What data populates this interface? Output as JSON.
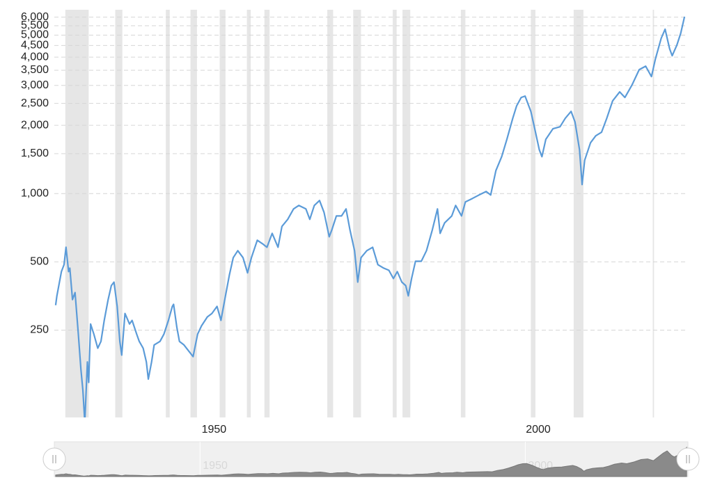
{
  "chart_data": {
    "type": "line",
    "log_scale": true,
    "grid": true,
    "color": "#5b9bd8",
    "recession_color": "#e6e6e6",
    "xlim": [
      1927.6,
      2025
    ],
    "xticks": [
      1950,
      2000
    ],
    "ylim": [
      103,
      6470
    ],
    "yticks": [
      250,
      500,
      {
        "value": 1000,
        "label": "1,000"
      },
      {
        "value": 1500,
        "label": "1,500"
      },
      {
        "value": 2000,
        "label": "2,000"
      },
      {
        "value": 2500,
        "label": "2,500"
      },
      {
        "value": 3000,
        "label": "3,000"
      },
      {
        "value": 3500,
        "label": "3,500"
      },
      {
        "value": 4000,
        "label": "4,000"
      },
      {
        "value": 4500,
        "label": "4,500"
      },
      {
        "value": 5000,
        "label": "5,000"
      },
      {
        "value": 5500,
        "label": "5,500"
      },
      {
        "value": 6000,
        "label": "6,000"
      }
    ],
    "recessions": [
      [
        1929.3,
        1932.9
      ],
      [
        1937.0,
        1938.1
      ],
      [
        1944.8,
        1945.4
      ],
      [
        1948.6,
        1949.6
      ],
      [
        1953.1,
        1954.0
      ],
      [
        1957.3,
        1957.9
      ],
      [
        1960.0,
        1960.8
      ],
      [
        1969.7,
        1970.6
      ],
      [
        1973.7,
        1974.9
      ],
      [
        1979.8,
        1980.4
      ],
      [
        1981.3,
        1982.5
      ],
      [
        1990.3,
        1991.0
      ],
      [
        2001.1,
        2001.8
      ],
      [
        2007.7,
        2009.2
      ],
      [
        2019.9,
        2020.1
      ]
    ],
    "x": [
      1927.8,
      1928.0,
      1928.7,
      1929.1,
      1929.4,
      1929.8,
      1930.0,
      1930.4,
      1930.8,
      1931.3,
      1931.7,
      1932.0,
      1932.3,
      1932.7,
      1932.9,
      1933.2,
      1933.7,
      1934.3,
      1934.8,
      1935.3,
      1935.9,
      1936.4,
      1936.8,
      1937.3,
      1937.7,
      1938.0,
      1938.5,
      1939.2,
      1939.6,
      1940.3,
      1940.7,
      1941.3,
      1941.8,
      1942.1,
      1942.6,
      1943.0,
      1943.9,
      1944.5,
      1945.2,
      1945.8,
      1946.0,
      1946.5,
      1946.9,
      1947.6,
      1948.4,
      1949.0,
      1949.7,
      1950.3,
      1951.2,
      1951.9,
      1952.7,
      1953.3,
      1954.0,
      1954.6,
      1955.2,
      1955.9,
      1956.7,
      1957.4,
      1958.0,
      1958.9,
      1959.7,
      1960.4,
      1961.2,
      1962.1,
      1962.7,
      1963.6,
      1964.5,
      1965.3,
      1966.4,
      1967.0,
      1967.7,
      1968.5,
      1969.2,
      1970.0,
      1970.4,
      1971.1,
      1971.9,
      1972.6,
      1973.2,
      1973.9,
      1974.4,
      1974.9,
      1975.8,
      1976.7,
      1977.5,
      1978.4,
      1979.2,
      1979.9,
      1980.5,
      1981.2,
      1981.8,
      1982.2,
      1982.7,
      1983.3,
      1984.2,
      1985.0,
      1985.9,
      1986.7,
      1987.1,
      1987.8,
      1988.9,
      1989.5,
      1990.4,
      1991.0,
      1992.1,
      1993.1,
      1994.2,
      1994.9,
      1995.7,
      1996.6,
      1997.4,
      1998.3,
      1998.9,
      1999.6,
      2000.2,
      2001.1,
      2001.7,
      2002.4,
      2002.8,
      2003.4,
      2004.5,
      2005.6,
      2006.4,
      2007.3,
      2007.9,
      2008.6,
      2009.0,
      2009.4,
      2010.3,
      2011.1,
      2012.0,
      2012.8,
      2013.7,
      2014.8,
      2015.6,
      2016.7,
      2017.8,
      2018.8,
      2019.7,
      2020.3,
      2021.2,
      2021.8,
      2022.5,
      2022.9,
      2023.6,
      2024.2,
      2024.8
    ],
    "values": [
      322,
      354,
      453,
      486,
      580,
      453,
      469,
      341,
      366,
      240,
      168,
      136,
      98,
      181,
      147,
      266,
      240,
      208,
      223,
      276,
      341,
      393,
      407,
      318,
      223,
      194,
      296,
      266,
      276,
      240,
      223,
      208,
      181,
      152,
      181,
      215,
      223,
      240,
      276,
      318,
      325,
      257,
      223,
      215,
      201,
      191,
      240,
      261,
      286,
      296,
      318,
      276,
      354,
      437,
      522,
      560,
      522,
      447,
      522,
      623,
      601,
      580,
      668,
      580,
      717,
      770,
      856,
      887,
      856,
      770,
      887,
      932,
      826,
      645,
      692,
      797,
      797,
      856,
      692,
      560,
      407,
      522,
      560,
      580,
      486,
      469,
      459,
      422,
      453,
      407,
      393,
      354,
      422,
      503,
      503,
      560,
      692,
      856,
      668,
      743,
      797,
      887,
      797,
      919,
      952,
      986,
      1021,
      986,
      1263,
      1455,
      1736,
      2147,
      2438,
      2654,
      2692,
      2304,
      1931,
      1561,
      1455,
      1736,
      1931,
      1972,
      2147,
      2304,
      2072,
      1561,
      1096,
      1404,
      1676,
      1799,
      1864,
      2147,
      2562,
      2809,
      2654,
      3014,
      3522,
      3649,
      3281,
      3916,
      4842,
      5307,
      4354,
      4057,
      4510,
      5088,
      6029
    ]
  }
}
